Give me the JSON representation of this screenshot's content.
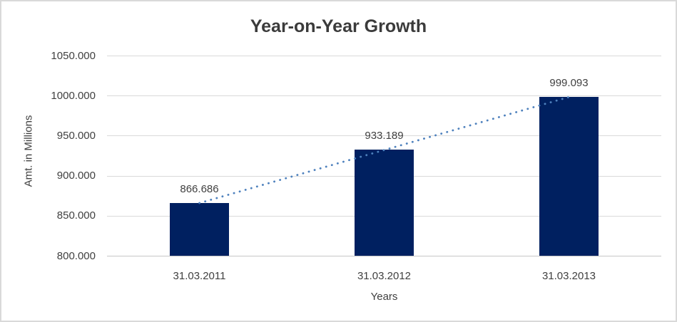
{
  "chart_data": {
    "type": "bar",
    "title": "Year-on-Year Growth",
    "xlabel": "Years",
    "ylabel": "Amt. in Millions",
    "categories": [
      "31.03.2011",
      "31.03.2012",
      "31.03.2013"
    ],
    "values": [
      866.686,
      933.189,
      999.093
    ],
    "data_labels": [
      "866.686",
      "933.189",
      "999.093"
    ],
    "ylim": [
      800,
      1050
    ],
    "ytick_step": 50,
    "ytick_labels": [
      "800.000",
      "850.000",
      "900.000",
      "950.000",
      "1000.000",
      "1050.000"
    ],
    "grid": "horizontal-on",
    "legend": "none",
    "trendline": {
      "type": "linear",
      "style": "dotted",
      "color": "#4e81bd"
    },
    "colors": {
      "bar": "#002060",
      "gridline": "#d9d9d9",
      "axis_line": "#c6c6c6",
      "text": "#404040",
      "title": "#3b3b3b",
      "frame_border": "#d9d9d9",
      "background": "#ffffff"
    }
  }
}
